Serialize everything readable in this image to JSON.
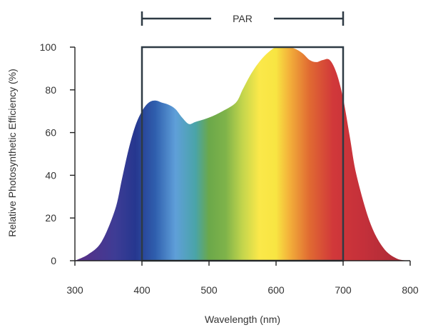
{
  "chart_data": {
    "type": "area",
    "title": "",
    "xlabel": "Wavelength (nm)",
    "ylabel": "Relative Photosynthetic Efficiency (%)",
    "xlim": [
      300,
      800
    ],
    "ylim": [
      0,
      100
    ],
    "xticks": [
      300,
      400,
      500,
      600,
      700,
      800
    ],
    "yticks": [
      0,
      20,
      40,
      60,
      80,
      100
    ],
    "grid": false,
    "fill": "visible-spectrum-gradient",
    "series": [
      {
        "x": [
          300,
          320,
          340,
          360,
          370,
          380,
          390,
          400,
          410,
          420,
          430,
          440,
          450,
          460,
          470,
          480,
          500,
          520,
          540,
          550,
          560,
          570,
          580,
          590,
          600,
          610,
          620,
          630,
          640,
          650,
          660,
          670,
          680,
          690,
          700,
          710,
          720,
          740,
          760,
          780,
          800
        ],
        "values": [
          0,
          3,
          9,
          24,
          38,
          52,
          63,
          70,
          74,
          75,
          74,
          73,
          71,
          67,
          64,
          65,
          67,
          70,
          74,
          80,
          86,
          91,
          95,
          98,
          100,
          100,
          100,
          99,
          97,
          94,
          93,
          94,
          94,
          88,
          76,
          58,
          40,
          18,
          6,
          1,
          0
        ]
      }
    ],
    "annotation": {
      "label": "PAR",
      "range": [
        400,
        700
      ],
      "box_top": 100,
      "color": "#2e3a44"
    }
  }
}
